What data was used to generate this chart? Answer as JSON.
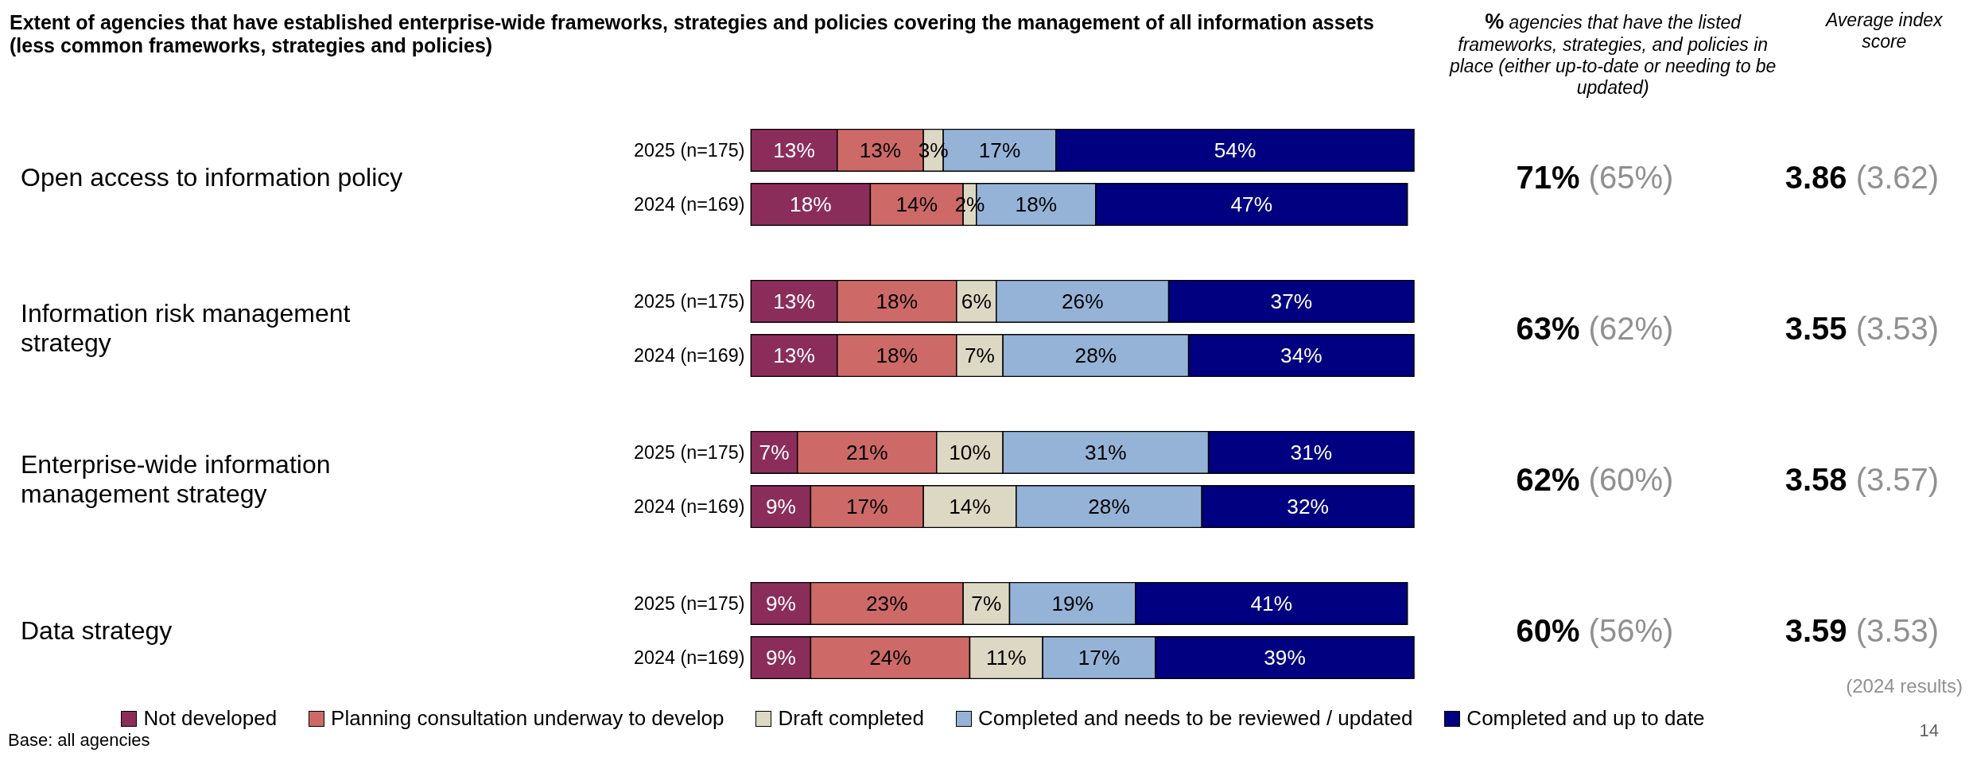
{
  "chart_data": [
    {
      "type": "bar",
      "orientation": "horizontal",
      "stacked": true,
      "title": "Extent of agencies that have established enterprise-wide frameworks, strategies and policies covering the management of all information assets (less common frameworks, strategies and policies)",
      "categories": [
        "2025 (n=175)",
        "2024 (n=169)"
      ],
      "annotations": [
        "Open access to information policy",
        "71% (65%)",
        "3.86 (3.62)",
        "% agencies that have the listed frameworks, strategies, and policies in place (either up-to-date or needing to be updated)",
        "Average index score"
      ],
      "series": [
        {
          "color": "#8b2d5a",
          "values": [
            13,
            18
          ],
          "value_labels": [
            "13%",
            "18%"
          ]
        },
        {
          "color": "#cd6a67",
          "values": [
            13,
            14
          ],
          "value_labels": [
            "13%",
            "14%"
          ]
        },
        {
          "color": "#ddd8c4",
          "values": [
            3,
            2
          ],
          "value_labels": [
            "3%",
            "2%"
          ]
        },
        {
          "color": "#95b3d7",
          "values": [
            17,
            18
          ],
          "value_labels": [
            "17%",
            "18%"
          ]
        },
        {
          "color": "#000080",
          "values": [
            54,
            47
          ],
          "value_labels": [
            "54%",
            "47%"
          ]
        }
      ]
    },
    {
      "type": "bar",
      "orientation": "horizontal",
      "stacked": true,
      "categories": [
        "2025 (n=175)",
        "2024 (n=169)"
      ],
      "annotations": [
        "Information risk management strategy",
        "63% (62%)",
        "3.55 (3.53)"
      ],
      "series": [
        {
          "color": "#8b2d5a",
          "values": [
            13,
            13
          ],
          "value_labels": [
            "13%",
            "13%"
          ]
        },
        {
          "color": "#cd6a67",
          "values": [
            18,
            18
          ],
          "value_labels": [
            "18%",
            "18%"
          ]
        },
        {
          "color": "#ddd8c4",
          "values": [
            6,
            7
          ],
          "value_labels": [
            "6%",
            "7%"
          ]
        },
        {
          "color": "#95b3d7",
          "values": [
            26,
            28
          ],
          "value_labels": [
            "26%",
            "28%"
          ]
        },
        {
          "color": "#000080",
          "values": [
            37,
            34
          ],
          "value_labels": [
            "37%",
            "34%"
          ]
        }
      ]
    },
    {
      "type": "bar",
      "orientation": "horizontal",
      "stacked": true,
      "categories": [
        "2025 (n=175)",
        "2024 (n=169)"
      ],
      "annotations": [
        "Enterprise-wide information management strategy",
        "62% (60%)",
        "3.58 (3.57)"
      ],
      "series": [
        {
          "color": "#8b2d5a",
          "values": [
            7,
            9
          ],
          "value_labels": [
            "7%",
            "9%"
          ]
        },
        {
          "color": "#cd6a67",
          "values": [
            21,
            17
          ],
          "value_labels": [
            "21%",
            "17%"
          ]
        },
        {
          "color": "#ddd8c4",
          "values": [
            10,
            14
          ],
          "value_labels": [
            "10%",
            "14%"
          ]
        },
        {
          "color": "#95b3d7",
          "values": [
            31,
            28
          ],
          "value_labels": [
            "31%",
            "28%"
          ]
        },
        {
          "color": "#000080",
          "values": [
            31,
            32
          ],
          "value_labels": [
            "31%",
            "32%"
          ]
        }
      ]
    },
    {
      "type": "bar",
      "orientation": "horizontal",
      "stacked": true,
      "legend": "bottom",
      "categories": [
        "2025 (n=175)",
        "2024 (n=169)"
      ],
      "annotations": [
        "Data strategy",
        "60% (56%)",
        "3.59 (3.53)",
        "(2024 results)",
        "Base: all agencies",
        "14"
      ],
      "series": [
        {
          "name": "Not developed",
          "color": "#8b2d5a",
          "values": [
            9,
            9
          ],
          "value_labels": [
            "9%",
            "9%"
          ]
        },
        {
          "name": "Planning consultation underway to develop",
          "color": "#cd6a67",
          "values": [
            23,
            24
          ],
          "value_labels": [
            "23%",
            "24%"
          ]
        },
        {
          "name": "Draft completed",
          "color": "#ddd8c4",
          "values": [
            7,
            11
          ],
          "value_labels": [
            "7%",
            "11%"
          ]
        },
        {
          "name": "Completed and needs to be reviewed / updated",
          "color": "#95b3d7",
          "values": [
            19,
            17
          ],
          "value_labels": [
            "19%",
            "17%"
          ]
        },
        {
          "name": "Completed and up to date",
          "color": "#000080",
          "values": [
            41,
            39
          ],
          "value_labels": [
            "41%",
            "39%"
          ]
        }
      ]
    }
  ]
}
